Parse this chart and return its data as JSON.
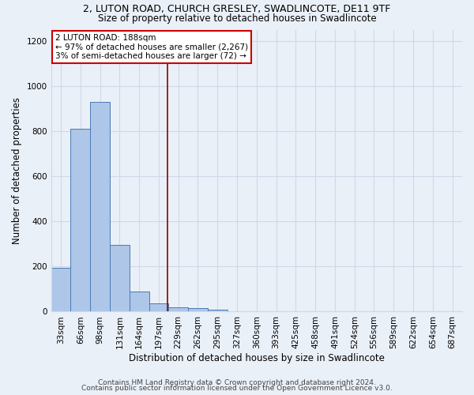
{
  "title_line1": "2, LUTON ROAD, CHURCH GRESLEY, SWADLINCOTE, DE11 9TF",
  "title_line2": "Size of property relative to detached houses in Swadlincote",
  "xlabel": "Distribution of detached houses by size in Swadlincote",
  "ylabel": "Number of detached properties",
  "bin_labels": [
    "33sqm",
    "66sqm",
    "98sqm",
    "131sqm",
    "164sqm",
    "197sqm",
    "229sqm",
    "262sqm",
    "295sqm",
    "327sqm",
    "360sqm",
    "393sqm",
    "425sqm",
    "458sqm",
    "491sqm",
    "524sqm",
    "556sqm",
    "589sqm",
    "622sqm",
    "654sqm",
    "687sqm"
  ],
  "bar_heights": [
    195,
    810,
    930,
    295,
    88,
    38,
    20,
    15,
    10,
    0,
    0,
    0,
    0,
    0,
    0,
    0,
    0,
    0,
    0,
    0,
    0
  ],
  "bar_color": "#aec6e8",
  "bar_edge_color": "#4a7ab5",
  "property_line_x": 5.45,
  "property_line_color": "#8b0000",
  "annotation_text": "2 LUTON ROAD: 188sqm\n← 97% of detached houses are smaller (2,267)\n3% of semi-detached houses are larger (72) →",
  "annotation_box_color": "#ffffff",
  "annotation_box_edge": "#cc0000",
  "ylim": [
    0,
    1250
  ],
  "yticks": [
    0,
    200,
    400,
    600,
    800,
    1000,
    1200
  ],
  "footer_line1": "Contains HM Land Registry data © Crown copyright and database right 2024.",
  "footer_line2": "Contains public sector information licensed under the Open Government Licence v3.0.",
  "background_color": "#eaf0f8",
  "plot_background_color": "#eaf0f8",
  "grid_color": "#d0d8e8",
  "title_fontsize": 9,
  "subtitle_fontsize": 8.5,
  "axis_label_fontsize": 8.5,
  "tick_fontsize": 7.5,
  "footer_fontsize": 6.5,
  "annot_fontsize": 7.5
}
